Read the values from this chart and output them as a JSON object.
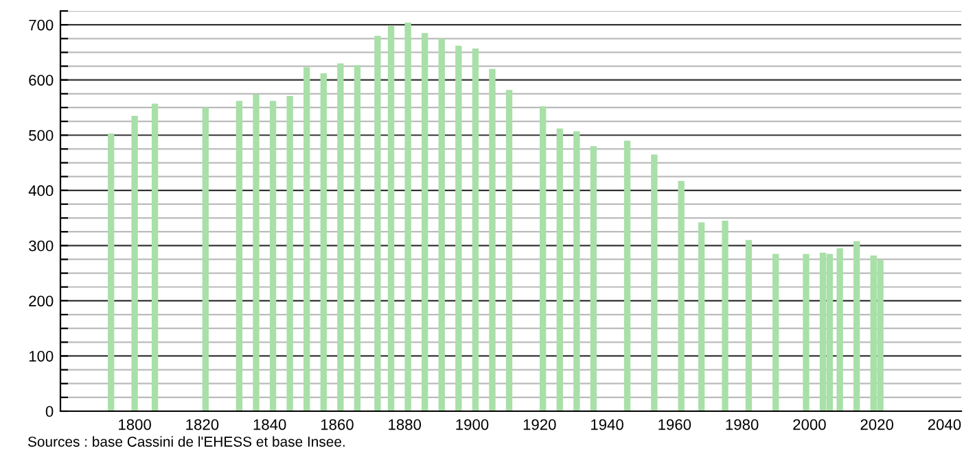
{
  "chart_data": {
    "type": "bar",
    "x": [
      1793,
      1800,
      1806,
      1821,
      1831,
      1836,
      1841,
      1846,
      1851,
      1856,
      1861,
      1866,
      1872,
      1876,
      1881,
      1886,
      1891,
      1896,
      1901,
      1906,
      1911,
      1921,
      1926,
      1931,
      1936,
      1946,
      1954,
      1962,
      1968,
      1975,
      1982,
      1990,
      1999,
      2004,
      2006,
      2009,
      2014,
      2019,
      2021
    ],
    "values": [
      503,
      535,
      557,
      550,
      562,
      574,
      562,
      571,
      623,
      612,
      630,
      627,
      680,
      698,
      704,
      685,
      675,
      662,
      657,
      620,
      582,
      552,
      512,
      507,
      480,
      490,
      465,
      417,
      342,
      345,
      310,
      285,
      285,
      287,
      285,
      295,
      308,
      282,
      274
    ],
    "color": "#a8e0a8",
    "xlim": [
      1778,
      2045
    ],
    "xticks": [
      1800,
      1820,
      1840,
      1860,
      1880,
      1900,
      1920,
      1940,
      1960,
      1980,
      2000,
      2020,
      2040
    ],
    "ylim": [
      0,
      725
    ],
    "yticks": [
      0,
      {
        "value": 25,
        "label": null
      },
      {
        "value": 50,
        "label": null
      },
      {
        "value": 75,
        "label": null
      },
      100,
      {
        "value": 125,
        "label": null
      },
      {
        "value": 150,
        "label": null
      },
      {
        "value": 175,
        "label": null
      },
      200,
      {
        "value": 225,
        "label": null
      },
      {
        "value": 250,
        "label": null
      },
      {
        "value": 275,
        "label": null
      },
      300,
      {
        "value": 325,
        "label": null
      },
      {
        "value": 350,
        "label": null
      },
      {
        "value": 375,
        "label": null
      },
      400,
      {
        "value": 425,
        "label": null
      },
      {
        "value": 450,
        "label": null
      },
      {
        "value": 475,
        "label": null
      },
      500,
      {
        "value": 525,
        "label": null
      },
      {
        "value": 550,
        "label": null
      },
      {
        "value": 575,
        "label": null
      },
      600,
      {
        "value": 625,
        "label": null
      },
      {
        "value": 650,
        "label": null
      },
      {
        "value": 675,
        "label": null
      },
      700,
      {
        "value": 725,
        "label": null
      }
    ],
    "grid": "y",
    "annotations": [
      "Sources : base Cassini de l'EHESS et base Insee."
    ]
  }
}
